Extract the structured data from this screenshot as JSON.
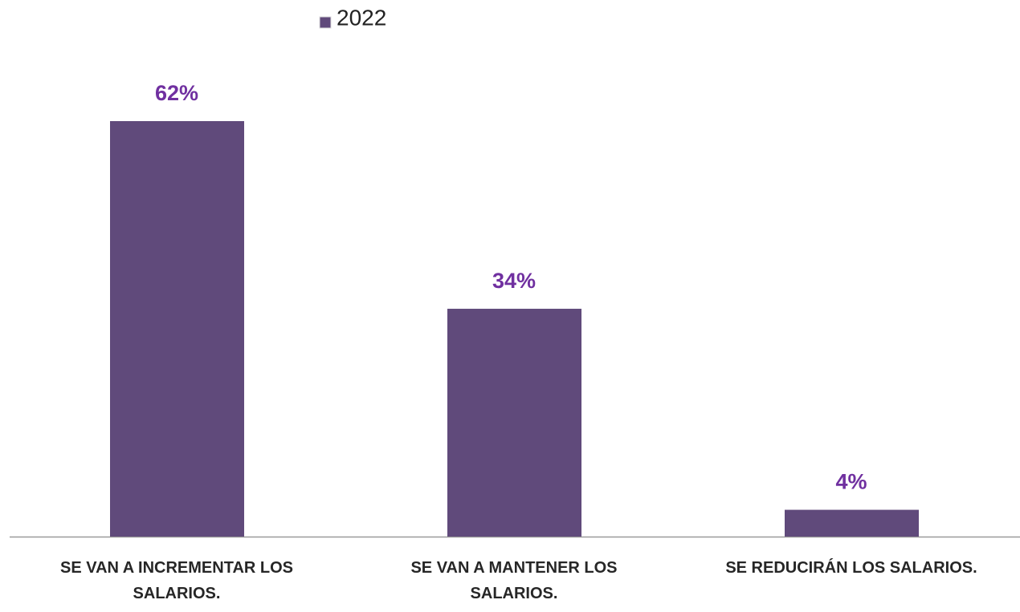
{
  "chart_data": {
    "type": "bar",
    "categories": [
      "SE VAN A INCREMENTAR LOS SALARIOS.",
      "SE VAN A MANTENER LOS SALARIOS.",
      "SE REDUCIRÁN LOS SALARIOS."
    ],
    "series": [
      {
        "name": "2022",
        "color": "#604a7b",
        "values": [
          62,
          34,
          4
        ],
        "value_labels": [
          "62%",
          "34%",
          "4%"
        ]
      }
    ],
    "value_label_color": "#7030a0",
    "legend": "top"
  }
}
